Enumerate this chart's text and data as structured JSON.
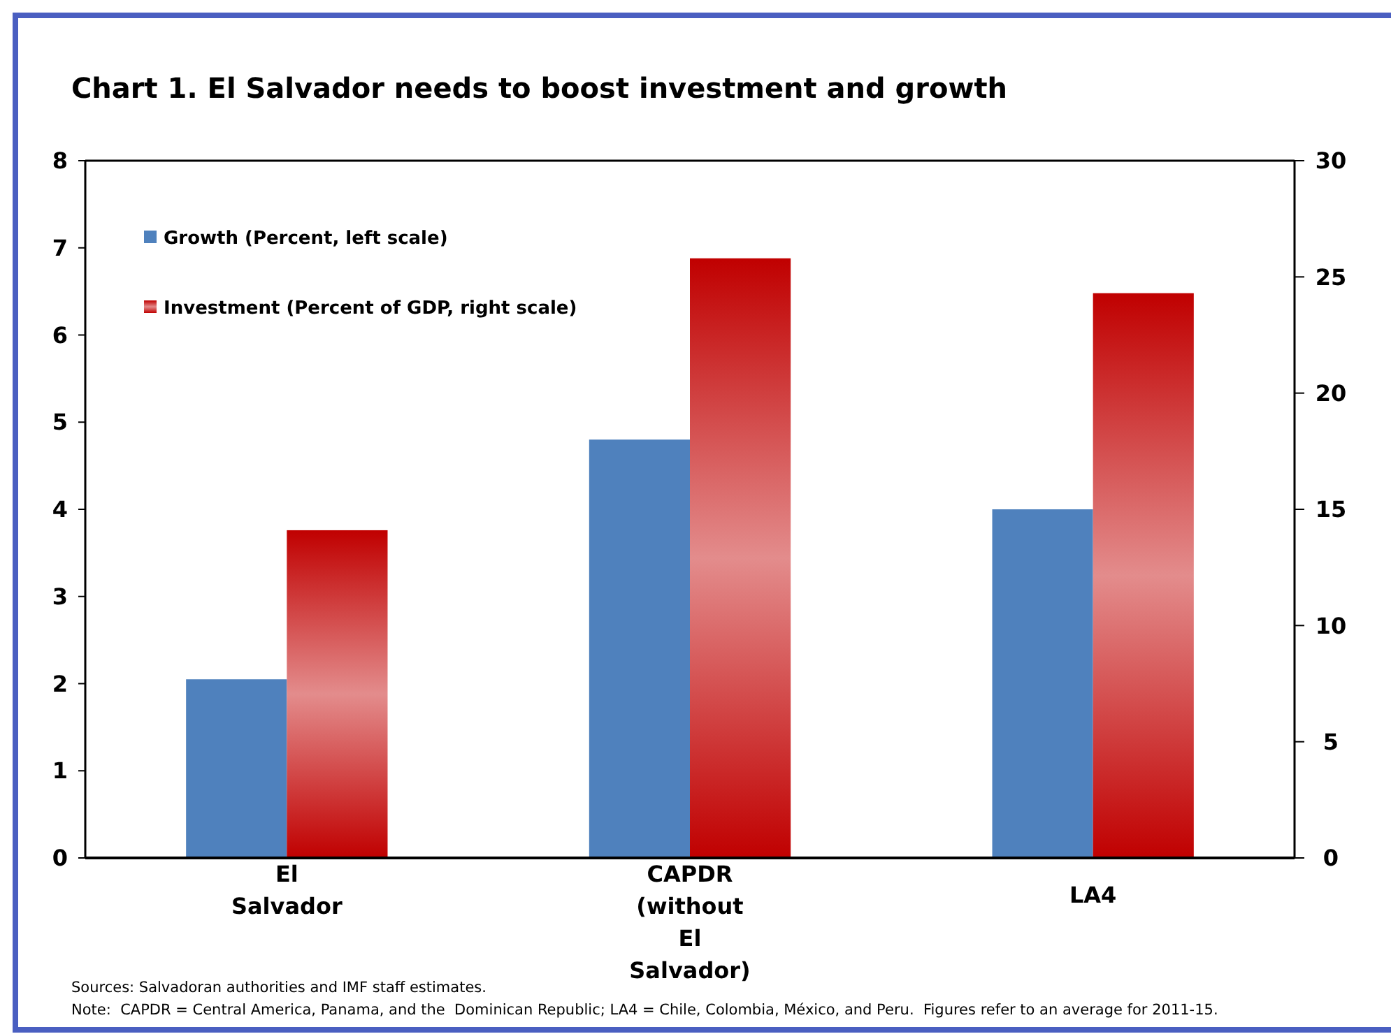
{
  "chart_data": {
    "type": "bar",
    "title": "Chart 1. El Salvador needs to boost investment and growth",
    "categories": [
      "El Salvador",
      "CAPDR (without El Salvador)",
      "LA4"
    ],
    "series": [
      {
        "name": "Growth (Percent, left scale)",
        "color": "#4f81bd",
        "values": [
          2.05,
          4.8,
          4.0
        ]
      },
      {
        "name": "Investment (Percent of GDP, right scale)",
        "color": "#c00000",
        "values": [
          14.1,
          25.8,
          24.3
        ],
        "axis": "y2"
      }
    ],
    "ylim": [
      0,
      8
    ],
    "yticks": [
      0,
      1,
      2,
      3,
      4,
      5,
      6,
      7,
      8
    ],
    "y2lim": [
      0,
      30
    ],
    "y2ticks": [
      0,
      5,
      10,
      15,
      20,
      25,
      30
    ],
    "legend": "top left",
    "grid": false,
    "annotations": [
      "Sources: Salvadoran authorities and IMF staff estimates.",
      "Note:  CAPDR = Central America, Panama, and the  Dominican Republic; LA4 = Chile, Colombia, México, and Peru.  Figures refer to an average for 2011-15."
    ]
  }
}
